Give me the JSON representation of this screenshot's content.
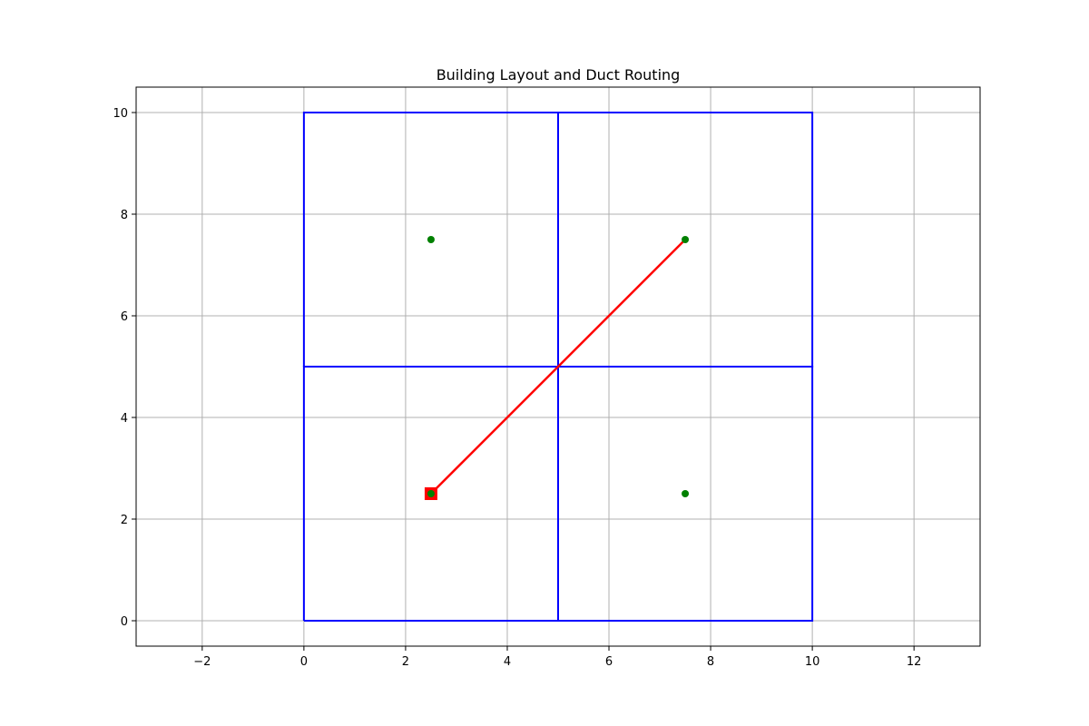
{
  "chart_data": {
    "type": "scatter",
    "title": "Building Layout and Duct Routing",
    "xlabel": "",
    "ylabel": "",
    "xlim": [
      -3.3,
      13.3
    ],
    "ylim": [
      -0.5,
      10.5
    ],
    "xticks": [
      -2,
      0,
      2,
      4,
      6,
      8,
      10,
      12
    ],
    "yticks": [
      0,
      2,
      4,
      6,
      8,
      10
    ],
    "xtick_labels": [
      "−2",
      "0",
      "2",
      "4",
      "6",
      "8",
      "10",
      "12"
    ],
    "ytick_labels": [
      "0",
      "2",
      "4",
      "6",
      "8",
      "10"
    ],
    "grid": true,
    "rooms": [
      {
        "x": [
          0,
          5,
          5,
          0,
          0
        ],
        "y": [
          0,
          0,
          5,
          5,
          0
        ]
      },
      {
        "x": [
          5,
          10,
          10,
          5,
          5
        ],
        "y": [
          0,
          0,
          5,
          5,
          0
        ]
      },
      {
        "x": [
          0,
          5,
          5,
          0,
          0
        ],
        "y": [
          5,
          5,
          10,
          10,
          5
        ]
      },
      {
        "x": [
          5,
          10,
          10,
          5,
          5
        ],
        "y": [
          5,
          5,
          10,
          10,
          5
        ]
      }
    ],
    "room_centers": [
      {
        "x": 2.5,
        "y": 2.5
      },
      {
        "x": 7.5,
        "y": 2.5
      },
      {
        "x": 2.5,
        "y": 7.5
      },
      {
        "x": 7.5,
        "y": 7.5
      }
    ],
    "duct": {
      "x": [
        2.5,
        5,
        7.5
      ],
      "y": [
        2.5,
        5,
        7.5
      ]
    },
    "source": {
      "x": 2.5,
      "y": 2.5
    },
    "colors": {
      "room": "#0000ff",
      "center": "#008000",
      "duct": "#ff0000",
      "source": "#ff0000",
      "grid": "#b0b0b0",
      "axis": "#000000"
    }
  }
}
